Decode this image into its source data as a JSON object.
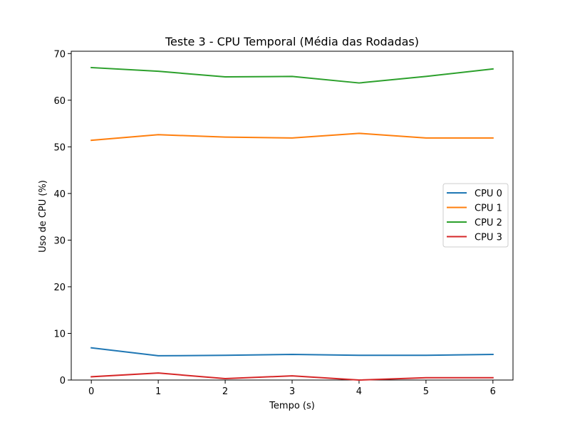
{
  "chart_data": {
    "type": "line",
    "title": "Teste 3 - CPU Temporal (Média das Rodadas)",
    "xlabel": "Tempo (s)",
    "ylabel": "Uso de CPU (%)",
    "x": [
      0,
      1,
      2,
      3,
      4,
      5,
      6
    ],
    "xlim": [
      -0.3,
      6.3
    ],
    "ylim": [
      0,
      70.5
    ],
    "xticks": [
      0,
      1,
      2,
      3,
      4,
      5,
      6
    ],
    "yticks": [
      0,
      10,
      20,
      30,
      40,
      50,
      60,
      70
    ],
    "grid": false,
    "legend_position": "center-right",
    "series": [
      {
        "name": "CPU 0",
        "color": "#1f77b4",
        "values": [
          6.9,
          5.2,
          5.3,
          5.5,
          5.3,
          5.3,
          5.5
        ]
      },
      {
        "name": "CPU 1",
        "color": "#ff7f0e",
        "values": [
          51.4,
          52.6,
          52.1,
          51.9,
          52.9,
          51.9,
          51.9
        ]
      },
      {
        "name": "CPU 2",
        "color": "#2ca02c",
        "values": [
          67.0,
          66.2,
          65.0,
          65.1,
          63.7,
          65.1,
          66.7
        ]
      },
      {
        "name": "CPU 3",
        "color": "#d62728",
        "values": [
          0.7,
          1.5,
          0.3,
          0.9,
          0.0,
          0.5,
          0.5
        ]
      }
    ]
  }
}
